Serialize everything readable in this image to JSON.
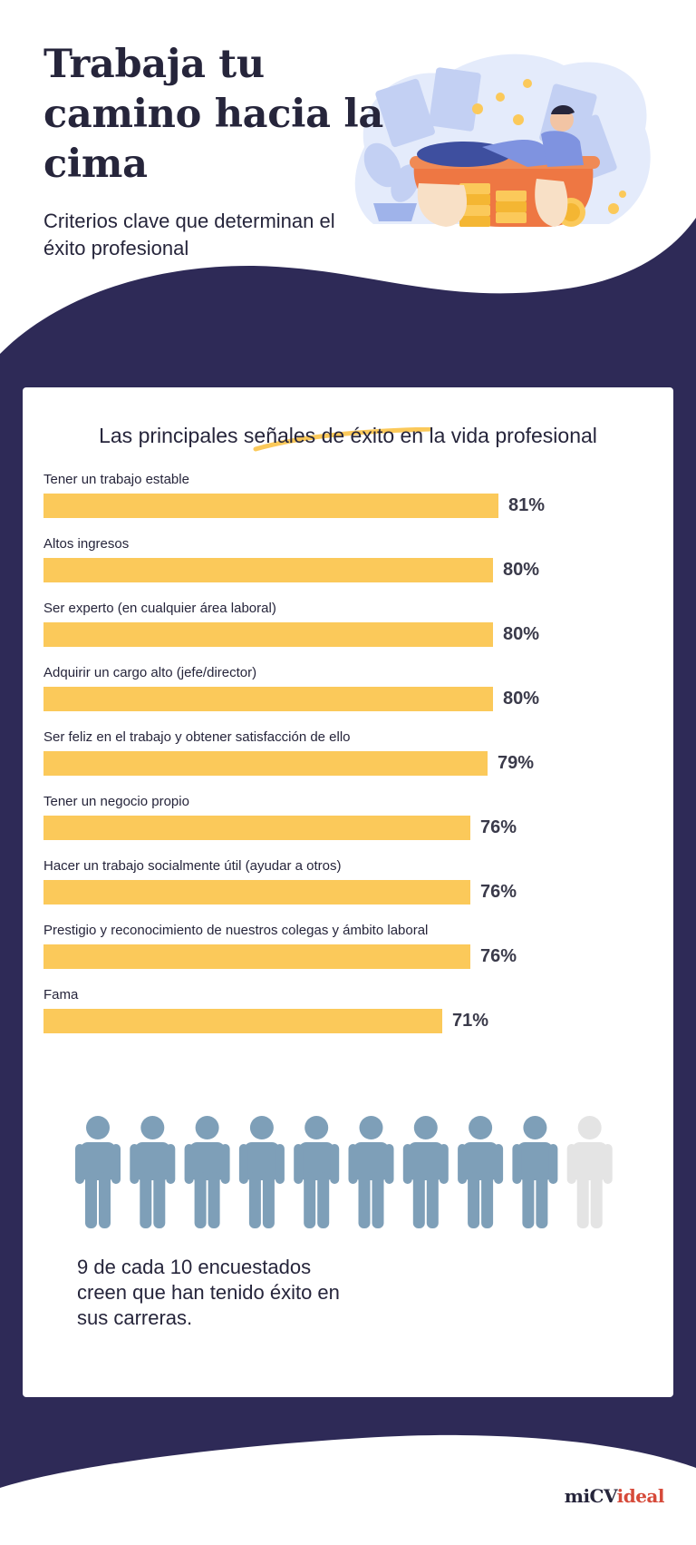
{
  "header": {
    "title": "Trabaja tu camino hacia la cima",
    "subtitle": "Criterios clave que determinan el éxito profesional"
  },
  "colors": {
    "navy": "#2e2a57",
    "bar": "#fbc95a",
    "person_active": "#7e9fb8",
    "person_inactive": "#e4e4e4",
    "brand_red": "#d64a3a"
  },
  "illustration": {
    "icon": "man-relaxing-in-bathtub-of-money-illustration"
  },
  "chart_data": {
    "type": "bar",
    "orientation": "horizontal",
    "title": "Las principales señales de éxito en la vida profesional",
    "categories": [
      "Tener un trabajo estable",
      "Altos ingresos",
      "Ser experto (en cualquier área laboral)",
      "Adquirir un cargo alto (jefe/director)",
      "Ser feliz en el trabajo y obtener satisfacción de ello",
      "Tener un negocio propio",
      "Hacer un trabajo socialmente útil (ayudar a otros)",
      "Prestigio y reconocimiento de nuestros colegas y ámbito laboral",
      "Fama"
    ],
    "values": [
      81,
      80,
      80,
      80,
      79,
      76,
      76,
      76,
      71
    ],
    "value_labels": [
      "81%",
      "80%",
      "80%",
      "80%",
      "79%",
      "76%",
      "76%",
      "76%",
      "71%"
    ],
    "unit": "%",
    "xlim": [
      0,
      100
    ],
    "grid": false
  },
  "pictogram": {
    "total": 10,
    "active": 9,
    "icon": "person-icon",
    "caption": "9 de cada 10 encuestados creen que han tenido éxito en sus carreras."
  },
  "brand": {
    "part1": "miCV",
    "part2": "ideal"
  }
}
